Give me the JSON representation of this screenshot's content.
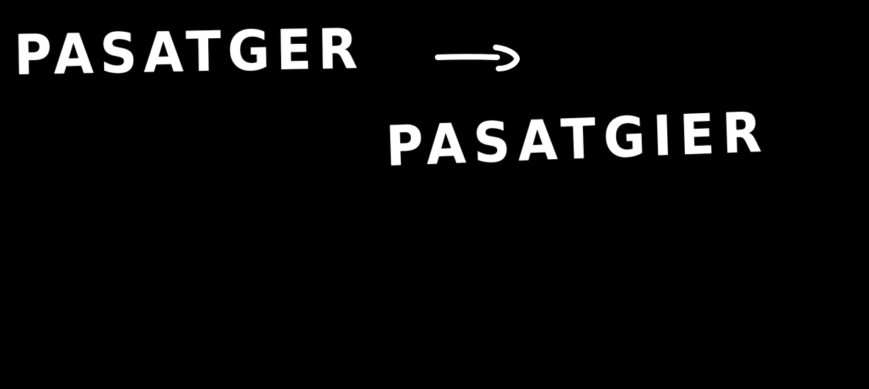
{
  "text": {
    "source_word": "PASATGER",
    "target_word": "PASATGIER"
  },
  "arrow": {
    "icon": "arrow-right-icon"
  },
  "colors": {
    "background": "#000000",
    "ink": "#ffffff"
  }
}
